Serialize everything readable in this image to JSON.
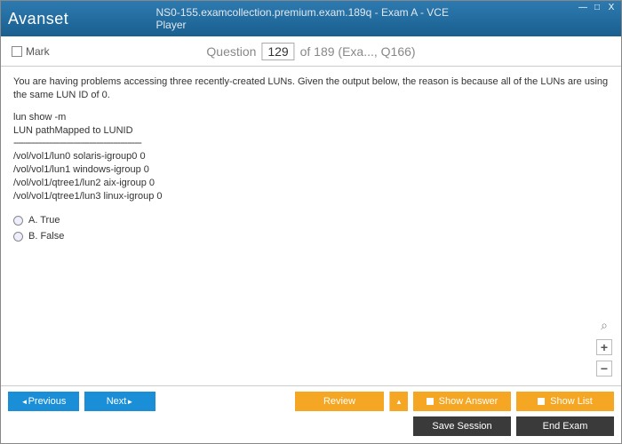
{
  "titlebar": {
    "logo": "Avanset",
    "title": "NS0-155.examcollection.premium.exam.189q - Exam A - VCE Player",
    "minimize": "—",
    "maximize": "□",
    "close": "X"
  },
  "questionbar": {
    "mark_label": "Mark",
    "prefix": "Question",
    "number": "129",
    "suffix": "of 189 (Exa..., Q166)"
  },
  "content": {
    "prompt": "You are having problems accessing three recently-created LUNs. Given the output below, the reason is because all of the LUNs are using the same LUN ID of 0.",
    "cmd1": "lun show -m",
    "cmd2": "LUN pathMapped to LUNID",
    "divider": "------------------------------------------------------",
    "l1": "/vol/vol1/lun0 solaris-igroup0 0",
    "l2": "/vol/vol1/lun1 windows-igroup 0",
    "l3": "/vol/vol1/qtree1/lun2 aix-igroup 0",
    "l4": "/vol/vol1/qtree1/lun3 linux-igroup 0",
    "opt_a": "A.   True",
    "opt_b": "B.   False"
  },
  "zoom": {
    "plus": "+",
    "minus": "−"
  },
  "footer": {
    "previous": "Previous",
    "next": "Next",
    "review": "Review",
    "review_arrow": "▲",
    "show_answer": "Show Answer",
    "show_list": "Show List",
    "save_session": "Save Session",
    "end_exam": "End Exam"
  },
  "colors": {
    "header_bg": "#1a5f8f",
    "blue_btn": "#1a8fd8",
    "orange_btn": "#f5a623",
    "dark_btn": "#3a3a3a"
  }
}
